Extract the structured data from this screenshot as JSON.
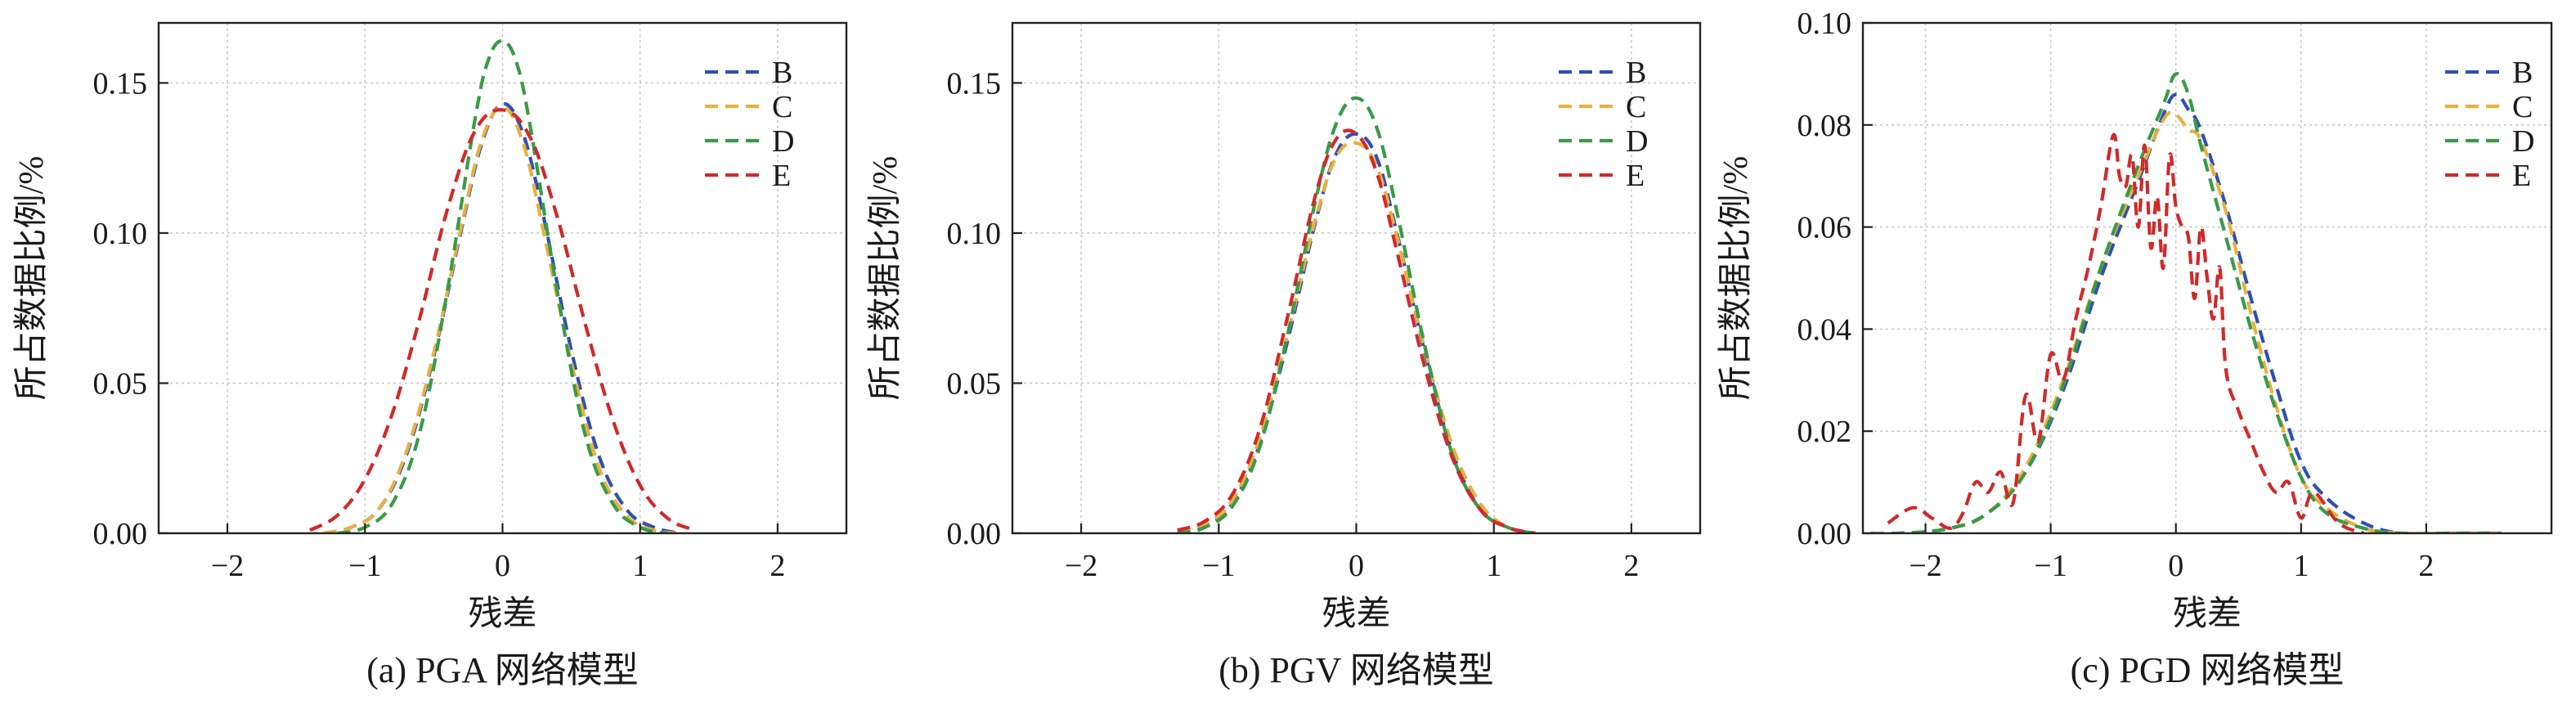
{
  "colors": {
    "B": "#3050b0",
    "C": "#e8b040",
    "D": "#3a9a48",
    "E": "#d02a2a",
    "grid": "#c8c8c8",
    "axis": "#222222"
  },
  "chart_data": [
    {
      "type": "line",
      "caption": "(a) PGA 网络模型",
      "xlabel": "残差",
      "ylabel": "所占数据比例/%",
      "xlim": [
        -2.5,
        2.5
      ],
      "ylim": [
        0,
        0.17
      ],
      "xticks": [
        -2,
        -1,
        0,
        1,
        2
      ],
      "xtick_labels": [
        "−2",
        "−1",
        "0",
        "1",
        "2"
      ],
      "yticks": [
        0,
        0.05,
        0.1,
        0.15
      ],
      "ytick_labels": [
        "0.00",
        "0.05",
        "0.10",
        "0.15"
      ],
      "grid": true,
      "legend": "top-right",
      "series": [
        {
          "name": "B",
          "color_key": "B",
          "x": [
            -1.3,
            -1.1,
            -0.9,
            -0.7,
            -0.5,
            -0.3,
            -0.15,
            0,
            0.15,
            0.3,
            0.5,
            0.7,
            0.9,
            1.1,
            1.3
          ],
          "y": [
            0.0,
            0.002,
            0.008,
            0.026,
            0.059,
            0.101,
            0.13,
            0.143,
            0.133,
            0.105,
            0.061,
            0.026,
            0.008,
            0.002,
            0.0
          ]
        },
        {
          "name": "C",
          "color_key": "C",
          "x": [
            -1.3,
            -1.1,
            -0.9,
            -0.7,
            -0.5,
            -0.3,
            -0.15,
            0,
            0.15,
            0.3,
            0.5,
            0.7,
            0.9,
            1.1,
            1.3
          ],
          "y": [
            0.0,
            0.002,
            0.008,
            0.027,
            0.06,
            0.102,
            0.131,
            0.142,
            0.13,
            0.1,
            0.057,
            0.022,
            0.006,
            0.001,
            0.0
          ]
        },
        {
          "name": "D",
          "color_key": "D",
          "x": [
            -1.2,
            -1.0,
            -0.8,
            -0.6,
            -0.4,
            -0.2,
            -0.1,
            0,
            0.1,
            0.2,
            0.4,
            0.6,
            0.8,
            1.0,
            1.2
          ],
          "y": [
            0.0,
            0.002,
            0.01,
            0.034,
            0.081,
            0.138,
            0.158,
            0.164,
            0.157,
            0.136,
            0.08,
            0.033,
            0.01,
            0.002,
            0.0
          ]
        },
        {
          "name": "E",
          "color_key": "E",
          "x": [
            -1.4,
            -1.2,
            -1.0,
            -0.8,
            -0.6,
            -0.4,
            -0.2,
            0,
            0.2,
            0.4,
            0.6,
            0.8,
            1.0,
            1.2,
            1.4
          ],
          "y": [
            0.001,
            0.006,
            0.018,
            0.04,
            0.072,
            0.108,
            0.134,
            0.141,
            0.132,
            0.105,
            0.07,
            0.038,
            0.016,
            0.005,
            0.001
          ]
        }
      ]
    },
    {
      "type": "line",
      "caption": "(b) PGV 网络模型",
      "xlabel": "残差",
      "ylabel": "所占数据比例/%",
      "xlim": [
        -2.5,
        2.5
      ],
      "ylim": [
        0,
        0.17
      ],
      "xticks": [
        -2,
        -1,
        0,
        1,
        2
      ],
      "xtick_labels": [
        "−2",
        "−1",
        "0",
        "1",
        "2"
      ],
      "yticks": [
        0,
        0.05,
        0.1,
        0.15
      ],
      "ytick_labels": [
        "0.00",
        "0.05",
        "0.10",
        "0.15"
      ],
      "grid": true,
      "legend": "top-right",
      "series": [
        {
          "name": "B",
          "color_key": "B",
          "x": [
            -1.3,
            -1.1,
            -0.9,
            -0.7,
            -0.5,
            -0.3,
            -0.15,
            0,
            0.15,
            0.3,
            0.5,
            0.7,
            0.9,
            1.1,
            1.3
          ],
          "y": [
            0.0,
            0.002,
            0.01,
            0.03,
            0.064,
            0.103,
            0.126,
            0.133,
            0.125,
            0.099,
            0.06,
            0.027,
            0.008,
            0.002,
            0.0
          ]
        },
        {
          "name": "C",
          "color_key": "C",
          "x": [
            -1.3,
            -1.1,
            -0.9,
            -0.7,
            -0.5,
            -0.3,
            -0.15,
            0,
            0.15,
            0.3,
            0.5,
            0.7,
            0.9,
            1.1,
            1.3
          ],
          "y": [
            0.0,
            0.003,
            0.011,
            0.032,
            0.066,
            0.104,
            0.125,
            0.13,
            0.122,
            0.098,
            0.061,
            0.029,
            0.01,
            0.002,
            0.0
          ]
        },
        {
          "name": "D",
          "color_key": "D",
          "x": [
            -1.3,
            -1.1,
            -0.9,
            -0.7,
            -0.5,
            -0.3,
            -0.15,
            0,
            0.15,
            0.3,
            0.5,
            0.7,
            0.9,
            1.1,
            1.3
          ],
          "y": [
            0.0,
            0.002,
            0.009,
            0.029,
            0.066,
            0.11,
            0.136,
            0.145,
            0.135,
            0.106,
            0.062,
            0.026,
            0.008,
            0.002,
            0.0
          ]
        },
        {
          "name": "E",
          "color_key": "E",
          "x": [
            -1.3,
            -1.1,
            -0.9,
            -0.7,
            -0.5,
            -0.3,
            -0.15,
            0,
            0.15,
            0.3,
            0.5,
            0.7,
            0.9,
            1.1,
            1.3
          ],
          "y": [
            0.001,
            0.004,
            0.013,
            0.035,
            0.072,
            0.112,
            0.131,
            0.133,
            0.12,
            0.093,
            0.055,
            0.025,
            0.008,
            0.002,
            0.0
          ]
        }
      ]
    },
    {
      "type": "line",
      "caption": "(c) PGD 网络模型",
      "xlabel": "残差",
      "ylabel": "所占数据比例/%",
      "xlim": [
        -2.5,
        3.0
      ],
      "ylim": [
        0,
        0.1
      ],
      "xticks": [
        -2,
        -1,
        0,
        1,
        2
      ],
      "xtick_labels": [
        "−2",
        "−1",
        "0",
        "1",
        "2"
      ],
      "yticks": [
        0,
        0.02,
        0.04,
        0.06,
        0.08,
        0.1
      ],
      "ytick_labels": [
        "0.00",
        "0.02",
        "0.04",
        "0.06",
        "0.08",
        "0.10"
      ],
      "grid": true,
      "legend": "top-right",
      "series": [
        {
          "name": "B",
          "color_key": "B",
          "x": [
            -2.6,
            -2.2,
            -1.8,
            -1.5,
            -1.2,
            -0.9,
            -0.6,
            -0.3,
            -0.1,
            0,
            0.1,
            0.2,
            0.4,
            0.6,
            0.8,
            1.0,
            1.2,
            1.5,
            1.8,
            2.2,
            2.6
          ],
          "y": [
            0.0,
            0.0,
            0.001,
            0.004,
            0.012,
            0.028,
            0.05,
            0.069,
            0.082,
            0.086,
            0.083,
            0.079,
            0.064,
            0.046,
            0.029,
            0.014,
            0.007,
            0.002,
            0.0,
            0.0,
            0.0
          ]
        },
        {
          "name": "C",
          "color_key": "C",
          "x": [
            -2.6,
            -2.2,
            -1.8,
            -1.5,
            -1.2,
            -0.9,
            -0.6,
            -0.3,
            -0.1,
            0,
            0.1,
            0.2,
            0.4,
            0.6,
            0.8,
            1.0,
            1.2,
            1.5,
            1.8,
            2.2,
            2.6
          ],
          "y": [
            0.0,
            0.0,
            0.001,
            0.004,
            0.013,
            0.03,
            0.052,
            0.07,
            0.081,
            0.082,
            0.079,
            0.077,
            0.063,
            0.043,
            0.025,
            0.011,
            0.005,
            0.001,
            0.0,
            0.0,
            0.0
          ]
        },
        {
          "name": "D",
          "color_key": "D",
          "x": [
            -2.6,
            -2.2,
            -1.8,
            -1.5,
            -1.2,
            -0.9,
            -0.6,
            -0.3,
            -0.1,
            0,
            0.1,
            0.2,
            0.4,
            0.6,
            0.8,
            1.0,
            1.2,
            1.5,
            1.8,
            2.2,
            2.6
          ],
          "y": [
            0.0,
            0.0,
            0.001,
            0.004,
            0.012,
            0.029,
            0.052,
            0.072,
            0.084,
            0.09,
            0.086,
            0.076,
            0.058,
            0.04,
            0.024,
            0.011,
            0.004,
            0.001,
            0.0,
            0.0,
            0.0
          ]
        },
        {
          "name": "E",
          "color_key": "E",
          "x": [
            -2.3,
            -2.1,
            -1.95,
            -1.8,
            -1.7,
            -1.6,
            -1.5,
            -1.4,
            -1.3,
            -1.2,
            -1.1,
            -1.0,
            -0.9,
            -0.8,
            -0.7,
            -0.6,
            -0.5,
            -0.45,
            -0.4,
            -0.35,
            -0.3,
            -0.25,
            -0.2,
            -0.15,
            -0.1,
            -0.05,
            0,
            0.05,
            0.1,
            0.15,
            0.2,
            0.25,
            0.3,
            0.35,
            0.4,
            0.5,
            0.6,
            0.7,
            0.8,
            0.9,
            1.0,
            1.1,
            1.3,
            1.5
          ],
          "y": [
            0.002,
            0.005,
            0.003,
            0.001,
            0.004,
            0.01,
            0.008,
            0.012,
            0.006,
            0.027,
            0.018,
            0.035,
            0.03,
            0.042,
            0.052,
            0.064,
            0.078,
            0.07,
            0.068,
            0.074,
            0.06,
            0.076,
            0.056,
            0.066,
            0.052,
            0.074,
            0.064,
            0.06,
            0.058,
            0.046,
            0.06,
            0.05,
            0.042,
            0.052,
            0.032,
            0.024,
            0.018,
            0.012,
            0.008,
            0.01,
            0.003,
            0.008,
            0.002,
            0.0
          ]
        }
      ]
    }
  ]
}
